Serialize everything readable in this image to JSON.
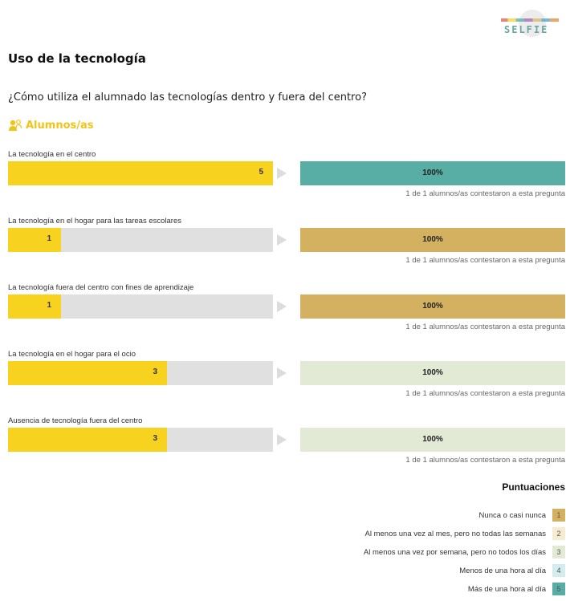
{
  "logo_text": "SELFIE",
  "title": "Uso de la tecnología",
  "question": "¿Cómo utiliza el alumnado las tecnologías dentro y fuera del centro?",
  "group": "Alumnos/as",
  "colors": {
    "score_bar": "#f7d21e",
    "track": "#e0e0e0",
    "1": "#d4b160",
    "2": "#f6ecd2",
    "3": "#e2ead6",
    "4": "#d3ecee",
    "5": "#58ada4"
  },
  "chart_data": {
    "type": "bar",
    "xlim": [
      0,
      5
    ],
    "categories": [
      "La tecnología en el centro",
      "La tecnología en el hogar para las tareas escolares",
      "La tecnología fuera del centro con fines de aprendizaje",
      "La tecnología en el hogar para el ocio",
      "Ausencia de tecnología fuera del centro"
    ],
    "values": [
      5,
      1,
      1,
      3,
      3
    ],
    "percent_labels": [
      "100%",
      "100%",
      "100%",
      "100%",
      "100%"
    ],
    "response_notes": [
      "1 de 1 alumnos/as contestaron a esta pregunta",
      "1 de 1 alumnos/as contestaron a esta pregunta",
      "1 de 1 alumnos/as contestaron a esta pregunta",
      "1 de 1 alumnos/as contestaron a esta pregunta",
      "1 de 1 alumnos/as contestaron a esta pregunta"
    ],
    "legend_title": "Puntuaciones",
    "legend": [
      {
        "label": "Nunca o casi nunca",
        "score": "1"
      },
      {
        "label": "Al menos una vez al mes, pero no todas las semanas",
        "score": "2"
      },
      {
        "label": "Al menos una vez por semana, pero no todos los días",
        "score": "3"
      },
      {
        "label": "Menos de una hora al día",
        "score": "4"
      },
      {
        "label": "Más de una hora al día",
        "score": "5"
      }
    ]
  }
}
